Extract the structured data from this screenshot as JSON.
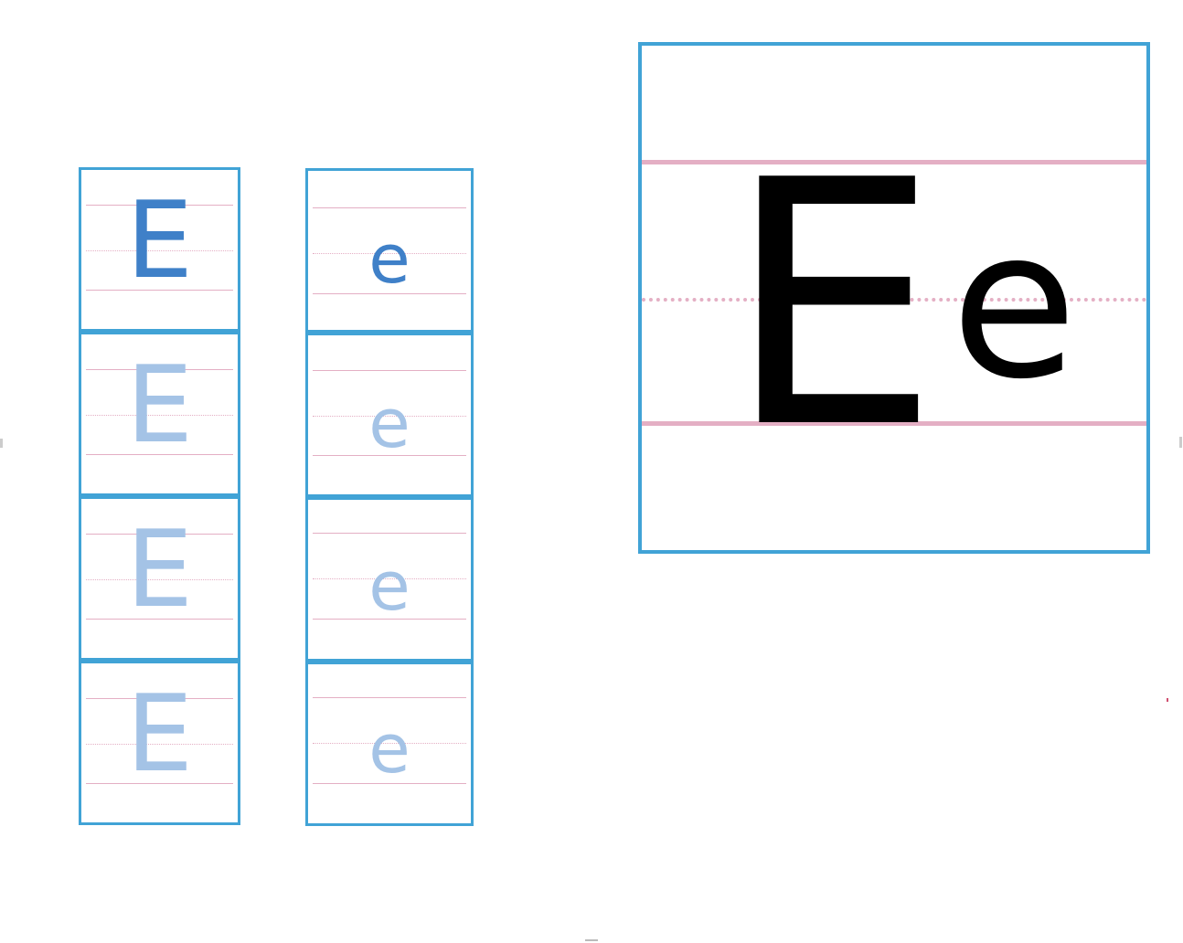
{
  "worksheet": {
    "letter_upper": "E",
    "letter_lower": "e",
    "uppercase_column": [
      "E",
      "E",
      "E",
      "E"
    ],
    "lowercase_column": [
      "e",
      "e",
      "e",
      "e"
    ],
    "display": {
      "upper": "E",
      "lower": "e"
    }
  },
  "colors": {
    "frame": "#41a3d6",
    "guide_line": "#e4afc4",
    "model_letter": "#3f80c8",
    "trace_letter": "#a4c3e6",
    "display_letter": "#000000"
  }
}
